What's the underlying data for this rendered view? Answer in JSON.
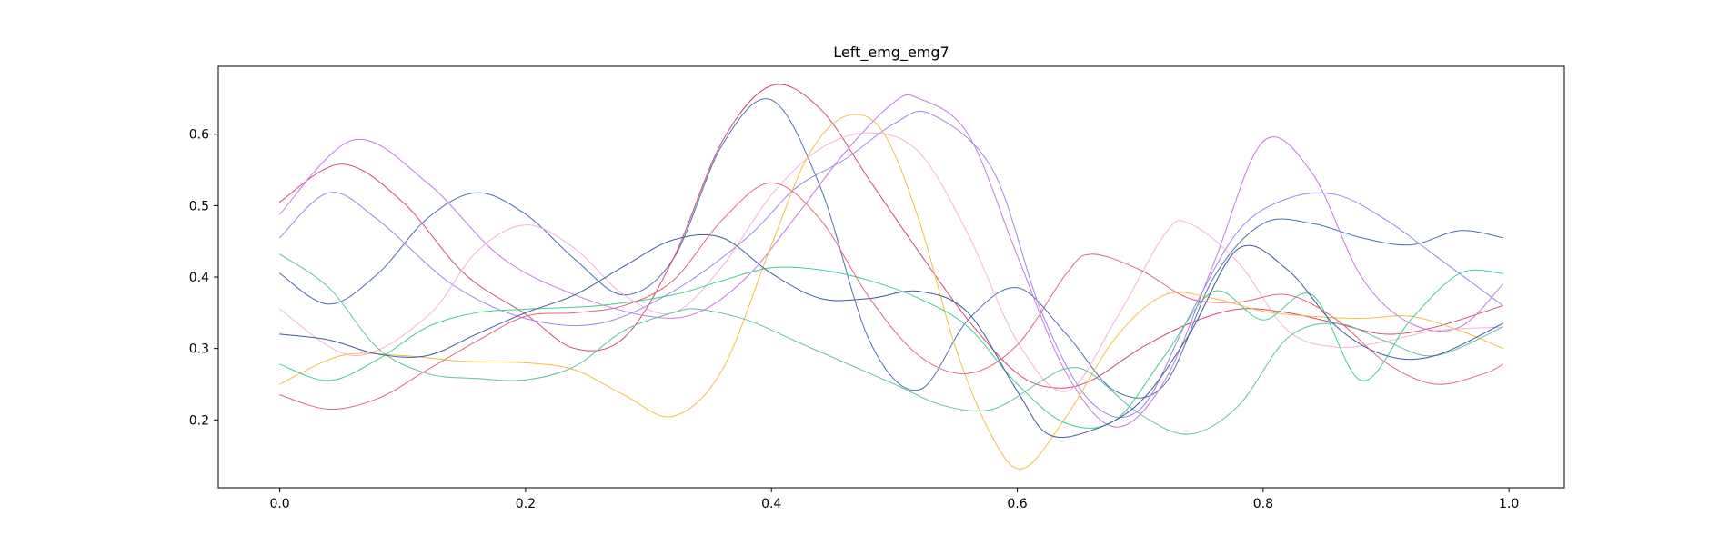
{
  "chart_data": {
    "type": "line",
    "title": "Left_emg_emg7",
    "xlabel": "",
    "ylabel": "",
    "xlim": [
      -0.05,
      1.045
    ],
    "ylim": [
      0.105,
      0.695
    ],
    "xticks": [
      0.0,
      0.2,
      0.4,
      0.6,
      0.8,
      1.0
    ],
    "xtick_labels": [
      "0.0",
      "0.2",
      "0.4",
      "0.6",
      "0.8",
      "1.0"
    ],
    "yticks": [
      0.2,
      0.3,
      0.4,
      0.5,
      0.6
    ],
    "ytick_labels": [
      "0.2",
      "0.3",
      "0.4",
      "0.5",
      "0.6"
    ],
    "grid": false,
    "legend": "none",
    "series": [
      {
        "color": "#4a6fb0",
        "x": [
          0,
          0.04,
          0.08,
          0.12,
          0.16,
          0.2,
          0.24,
          0.28,
          0.32,
          0.36,
          0.4,
          0.44,
          0.48,
          0.52,
          0.56,
          0.6,
          0.64,
          0.68,
          0.72,
          0.76,
          0.8,
          0.84,
          0.88,
          0.92,
          0.96,
          0.995
        ],
        "y": [
          0.405,
          0.362,
          0.405,
          0.482,
          0.518,
          0.488,
          0.425,
          0.375,
          0.425,
          0.585,
          0.648,
          0.525,
          0.31,
          0.242,
          0.34,
          0.385,
          0.32,
          0.24,
          0.25,
          0.4,
          0.475,
          0.475,
          0.455,
          0.445,
          0.465,
          0.455
        ]
      },
      {
        "color": "#d04a78",
        "x": [
          0,
          0.05,
          0.1,
          0.15,
          0.2,
          0.24,
          0.28,
          0.32,
          0.36,
          0.4,
          0.44,
          0.48,
          0.52,
          0.56,
          0.6,
          0.63,
          0.66,
          0.7,
          0.74,
          0.78,
          0.82,
          0.86,
          0.9,
          0.94,
          0.995
        ],
        "y": [
          0.505,
          0.558,
          0.505,
          0.405,
          0.348,
          0.3,
          0.315,
          0.425,
          0.59,
          0.668,
          0.635,
          0.535,
          0.435,
          0.34,
          0.265,
          0.245,
          0.255,
          0.3,
          0.335,
          0.355,
          0.35,
          0.335,
          0.32,
          0.33,
          0.36
        ]
      },
      {
        "color": "#c678e0",
        "x": [
          0,
          0.06,
          0.12,
          0.18,
          0.24,
          0.3,
          0.34,
          0.38,
          0.42,
          0.46,
          0.5,
          0.52,
          0.56,
          0.6,
          0.64,
          0.68,
          0.72,
          0.76,
          0.8,
          0.84,
          0.88,
          0.92,
          0.96,
          0.995
        ],
        "y": [
          0.488,
          0.592,
          0.532,
          0.428,
          0.375,
          0.345,
          0.35,
          0.4,
          0.485,
          0.575,
          0.645,
          0.65,
          0.6,
          0.43,
          0.265,
          0.19,
          0.255,
          0.42,
          0.59,
          0.545,
          0.4,
          0.335,
          0.33,
          0.39
        ]
      },
      {
        "color": "#9d86e6",
        "x": [
          0,
          0.04,
          0.08,
          0.14,
          0.2,
          0.26,
          0.32,
          0.38,
          0.42,
          0.46,
          0.5,
          0.53,
          0.58,
          0.62,
          0.66,
          0.7,
          0.74,
          0.78,
          0.82,
          0.86,
          0.9,
          0.94,
          0.995
        ],
        "y": [
          0.455,
          0.518,
          0.48,
          0.39,
          0.342,
          0.335,
          0.38,
          0.455,
          0.525,
          0.565,
          0.615,
          0.628,
          0.55,
          0.35,
          0.225,
          0.215,
          0.345,
          0.465,
          0.51,
          0.515,
          0.48,
          0.43,
          0.36
        ]
      },
      {
        "color": "#f7b0de",
        "x": [
          0,
          0.06,
          0.12,
          0.16,
          0.2,
          0.24,
          0.28,
          0.32,
          0.36,
          0.4,
          0.44,
          0.48,
          0.52,
          0.56,
          0.6,
          0.64,
          0.68,
          0.72,
          0.74,
          0.78,
          0.82,
          0.86,
          0.9,
          0.94,
          0.995
        ],
        "y": [
          0.355,
          0.29,
          0.345,
          0.435,
          0.473,
          0.44,
          0.375,
          0.35,
          0.415,
          0.515,
          0.58,
          0.602,
          0.575,
          0.46,
          0.31,
          0.24,
          0.34,
          0.46,
          0.475,
          0.42,
          0.325,
          0.302,
          0.31,
          0.325,
          0.33
        ]
      },
      {
        "color": "#f2bf3a",
        "x": [
          0,
          0.05,
          0.1,
          0.15,
          0.2,
          0.24,
          0.28,
          0.32,
          0.36,
          0.4,
          0.43,
          0.46,
          0.49,
          0.52,
          0.55,
          0.58,
          0.605,
          0.64,
          0.68,
          0.72,
          0.76,
          0.8,
          0.84,
          0.88,
          0.92,
          0.96,
          0.995
        ],
        "y": [
          0.25,
          0.29,
          0.29,
          0.282,
          0.28,
          0.27,
          0.235,
          0.205,
          0.27,
          0.445,
          0.57,
          0.625,
          0.605,
          0.48,
          0.3,
          0.175,
          0.132,
          0.205,
          0.315,
          0.375,
          0.37,
          0.352,
          0.345,
          0.342,
          0.345,
          0.325,
          0.3
        ]
      },
      {
        "color": "#3fcf8e",
        "x": [
          0,
          0.04,
          0.08,
          0.12,
          0.16,
          0.2,
          0.26,
          0.32,
          0.36,
          0.4,
          0.44,
          0.48,
          0.52,
          0.56,
          0.6,
          0.64,
          0.68,
          0.72,
          0.76,
          0.8,
          0.84,
          0.88,
          0.92,
          0.96,
          0.995
        ],
        "y": [
          0.278,
          0.255,
          0.285,
          0.33,
          0.35,
          0.355,
          0.36,
          0.375,
          0.395,
          0.413,
          0.41,
          0.395,
          0.37,
          0.33,
          0.25,
          0.195,
          0.2,
          0.29,
          0.38,
          0.34,
          0.375,
          0.255,
          0.34,
          0.405,
          0.405
        ]
      },
      {
        "color": "#5fbfa8",
        "x": [
          0,
          0.04,
          0.08,
          0.12,
          0.16,
          0.2,
          0.24,
          0.28,
          0.32,
          0.34,
          0.38,
          0.42,
          0.46,
          0.5,
          0.54,
          0.58,
          0.62,
          0.64,
          0.66,
          0.7,
          0.74,
          0.78,
          0.82,
          0.86,
          0.9,
          0.94,
          0.995
        ],
        "y": [
          0.432,
          0.385,
          0.3,
          0.265,
          0.258,
          0.256,
          0.275,
          0.325,
          0.35,
          0.355,
          0.34,
          0.31,
          0.28,
          0.25,
          0.22,
          0.215,
          0.255,
          0.272,
          0.265,
          0.208,
          0.18,
          0.22,
          0.315,
          0.335,
          0.31,
          0.29,
          0.33
        ]
      },
      {
        "color": "#3a5a9a",
        "x": [
          0,
          0.04,
          0.08,
          0.12,
          0.16,
          0.2,
          0.24,
          0.28,
          0.32,
          0.36,
          0.4,
          0.44,
          0.48,
          0.52,
          0.56,
          0.6,
          0.625,
          0.66,
          0.7,
          0.74,
          0.78,
          0.82,
          0.86,
          0.9,
          0.94,
          0.995
        ],
        "y": [
          0.32,
          0.312,
          0.292,
          0.29,
          0.32,
          0.35,
          0.375,
          0.415,
          0.452,
          0.455,
          0.405,
          0.37,
          0.37,
          0.38,
          0.35,
          0.24,
          0.18,
          0.185,
          0.225,
          0.32,
          0.44,
          0.41,
          0.33,
          0.29,
          0.29,
          0.335
        ]
      },
      {
        "color": "#e0667e",
        "x": [
          0,
          0.04,
          0.08,
          0.12,
          0.16,
          0.2,
          0.24,
          0.28,
          0.32,
          0.36,
          0.4,
          0.44,
          0.48,
          0.52,
          0.56,
          0.6,
          0.64,
          0.66,
          0.7,
          0.74,
          0.78,
          0.82,
          0.86,
          0.9,
          0.94,
          0.98,
          0.995
        ],
        "y": [
          0.235,
          0.215,
          0.23,
          0.27,
          0.31,
          0.345,
          0.35,
          0.36,
          0.395,
          0.48,
          0.532,
          0.48,
          0.37,
          0.29,
          0.265,
          0.305,
          0.405,
          0.432,
          0.41,
          0.37,
          0.365,
          0.375,
          0.34,
          0.28,
          0.25,
          0.265,
          0.278
        ]
      }
    ]
  }
}
